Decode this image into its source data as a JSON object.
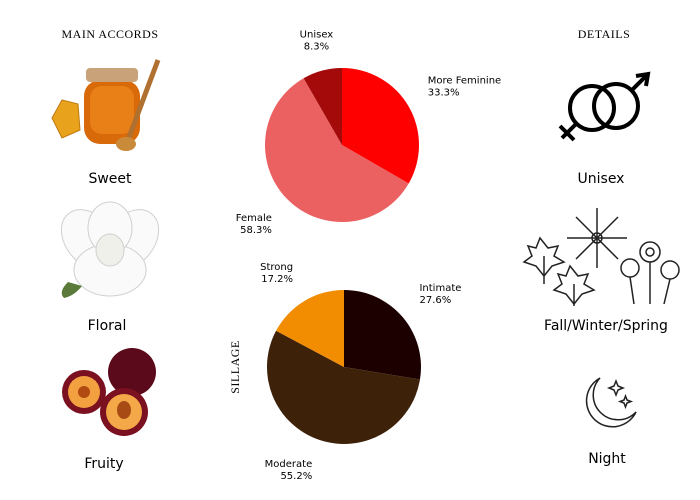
{
  "accords": {
    "title": "MAIN ACCORDS",
    "items": [
      "Sweet",
      "Floral",
      "Fruity"
    ]
  },
  "details": {
    "title": "DETAILS",
    "items": [
      "Unisex",
      "Fall/Winter/Spring",
      "Night"
    ]
  },
  "chart_data": [
    {
      "type": "pie",
      "categories": [
        "More Feminine",
        "Female",
        "Unisex"
      ],
      "values": [
        33.3,
        58.3,
        8.3
      ],
      "value_labels": [
        "33.3%",
        "58.3%",
        "8.3%"
      ],
      "colors": [
        "#ff0000",
        "#eb6060",
        "#a50a0a"
      ]
    },
    {
      "type": "pie",
      "title": "SILLAGE",
      "categories": [
        "Intimate",
        "Moderate",
        "Strong"
      ],
      "values": [
        27.6,
        55.2,
        17.2
      ],
      "value_labels": [
        "27.6%",
        "55.2%",
        "17.2%"
      ],
      "colors": [
        "#1c0000",
        "#3d2108",
        "#f28c00"
      ]
    }
  ]
}
